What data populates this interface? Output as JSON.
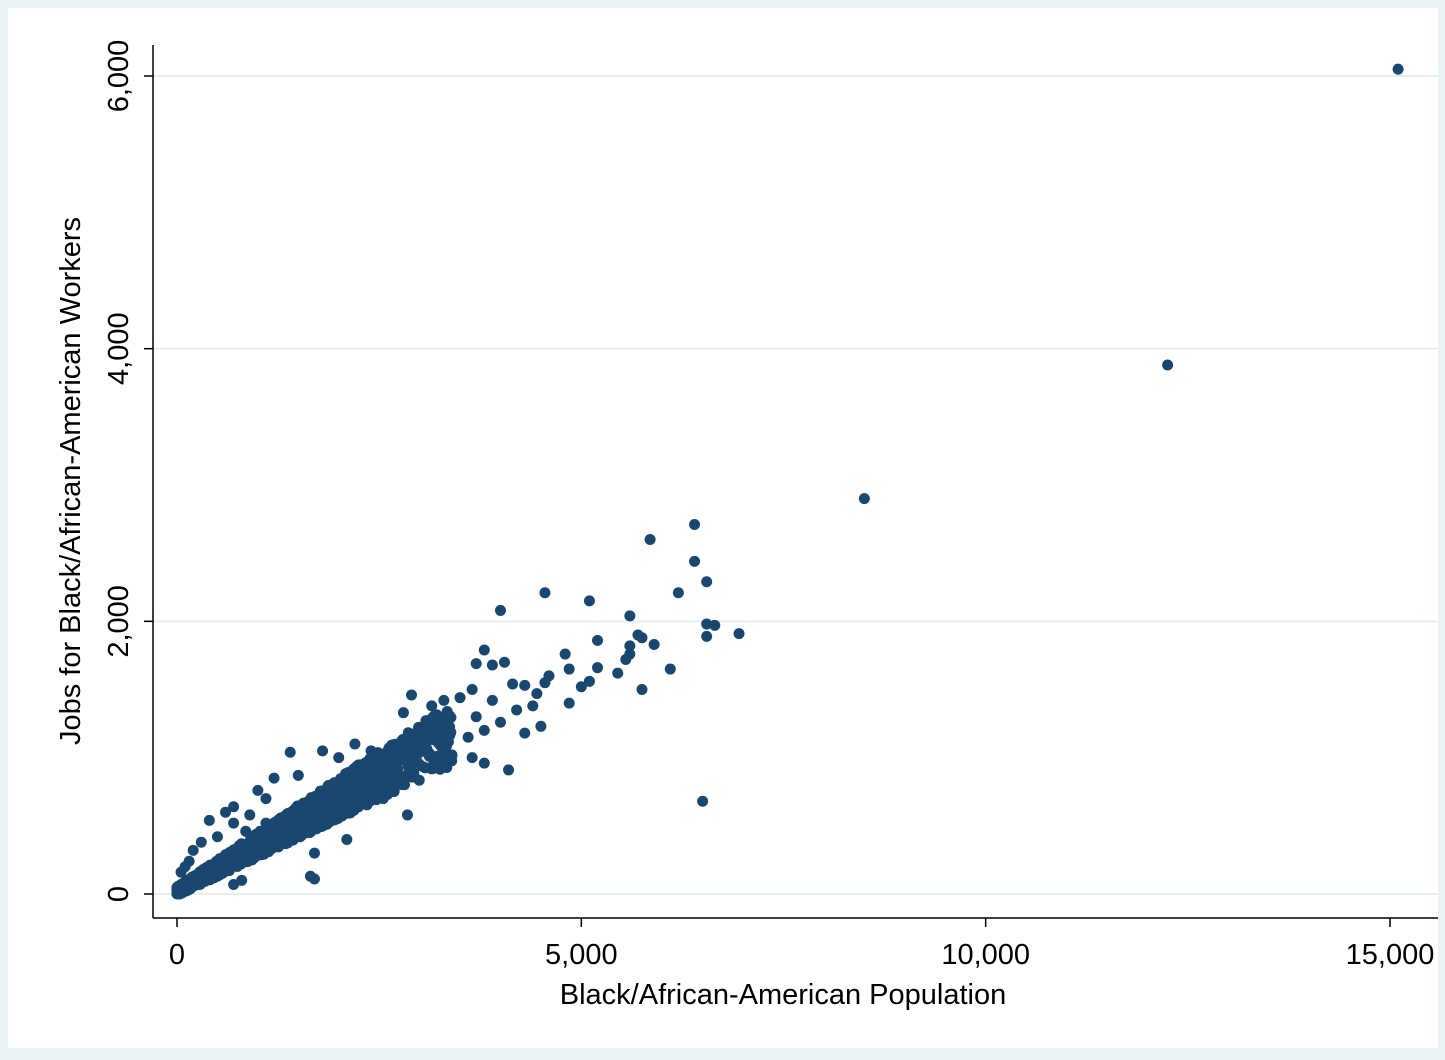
{
  "chart_data": {
    "type": "scatter",
    "title": "",
    "xlabel": "Black/African-American Population",
    "ylabel": "Jobs for Black/African-American Workers",
    "xlim": [
      -300,
      15700
    ],
    "ylim": [
      -180,
      6250
    ],
    "xticks": [
      0,
      5000,
      10000,
      15000
    ],
    "xtick_labels": [
      "0",
      "5,000",
      "10,000",
      "15,000"
    ],
    "yticks": [
      0,
      2000,
      4000,
      6000
    ],
    "ytick_labels": [
      "0",
      "2,000",
      "4,000",
      "6,000"
    ],
    "grid": "horizontal",
    "legend": "none",
    "colors": {
      "marker": "#1a476f",
      "background": "#eaf2f3",
      "plot_background": "#ffffff",
      "grid": "#e6eef0"
    },
    "points": [
      [
        15100,
        6050
      ],
      [
        12250,
        3880
      ],
      [
        8500,
        2900
      ],
      [
        6400,
        2710
      ],
      [
        5850,
        2600
      ],
      [
        6400,
        2440
      ],
      [
        6550,
        2290
      ],
      [
        6200,
        2210
      ],
      [
        4550,
        2210
      ],
      [
        5100,
        2150
      ],
      [
        4000,
        2080
      ],
      [
        5600,
        2040
      ],
      [
        6550,
        1980
      ],
      [
        6650,
        1970
      ],
      [
        6950,
        1910
      ],
      [
        5700,
        1900
      ],
      [
        6550,
        1890
      ],
      [
        5750,
        1880
      ],
      [
        5200,
        1860
      ],
      [
        5600,
        1820
      ],
      [
        5900,
        1830
      ],
      [
        3800,
        1790
      ],
      [
        5600,
        1760
      ],
      [
        4800,
        1760
      ],
      [
        5550,
        1720
      ],
      [
        4050,
        1700
      ],
      [
        3700,
        1690
      ],
      [
        3900,
        1680
      ],
      [
        5200,
        1660
      ],
      [
        4850,
        1650
      ],
      [
        6100,
        1650
      ],
      [
        5450,
        1620
      ],
      [
        4600,
        1600
      ],
      [
        5100,
        1560
      ],
      [
        4550,
        1550
      ],
      [
        4150,
        1540
      ],
      [
        5000,
        1520
      ],
      [
        5750,
        1500
      ],
      [
        4300,
        1530
      ],
      [
        3650,
        1500
      ],
      [
        4450,
        1470
      ],
      [
        3500,
        1440
      ],
      [
        2900,
        1460
      ],
      [
        4850,
        1400
      ],
      [
        4400,
        1380
      ],
      [
        3900,
        1420
      ],
      [
        3300,
        1420
      ],
      [
        3150,
        1380
      ],
      [
        4200,
        1350
      ],
      [
        3700,
        1300
      ],
      [
        4000,
        1260
      ],
      [
        3200,
        1280
      ],
      [
        2800,
        1330
      ],
      [
        4300,
        1180
      ],
      [
        4500,
        1230
      ],
      [
        3600,
        1150
      ],
      [
        3800,
        1200
      ],
      [
        2800,
        1100
      ],
      [
        3000,
        1080
      ],
      [
        3400,
        1020
      ],
      [
        3650,
        1000
      ],
      [
        3800,
        960
      ],
      [
        4100,
        910
      ],
      [
        3300,
        970
      ],
      [
        2400,
        1050
      ],
      [
        2200,
        1100
      ],
      [
        1800,
        1050
      ],
      [
        2000,
        1000
      ],
      [
        1400,
        1040
      ],
      [
        2600,
        900
      ],
      [
        2300,
        850
      ],
      [
        1200,
        850
      ],
      [
        1500,
        870
      ],
      [
        2800,
        830
      ],
      [
        2850,
        860
      ],
      [
        1800,
        720
      ],
      [
        2550,
        700
      ],
      [
        2200,
        780
      ],
      [
        1000,
        760
      ],
      [
        2850,
        580
      ],
      [
        700,
        640
      ],
      [
        1100,
        700
      ],
      [
        2100,
        630
      ],
      [
        900,
        580
      ],
      [
        1550,
        560
      ],
      [
        1300,
        480
      ],
      [
        2100,
        400
      ],
      [
        1100,
        520
      ],
      [
        850,
        460
      ],
      [
        400,
        540
      ],
      [
        600,
        600
      ],
      [
        700,
        520
      ],
      [
        1600,
        450
      ],
      [
        500,
        420
      ],
      [
        300,
        380
      ],
      [
        1000,
        350
      ],
      [
        1700,
        300
      ],
      [
        200,
        320
      ],
      [
        800,
        300
      ],
      [
        600,
        180
      ],
      [
        1650,
        130
      ],
      [
        1700,
        110
      ],
      [
        800,
        100
      ],
      [
        700,
        70
      ],
      [
        500,
        150
      ],
      [
        150,
        240
      ],
      [
        100,
        200
      ],
      [
        50,
        160
      ],
      [
        6500,
        680
      ]
    ]
  }
}
